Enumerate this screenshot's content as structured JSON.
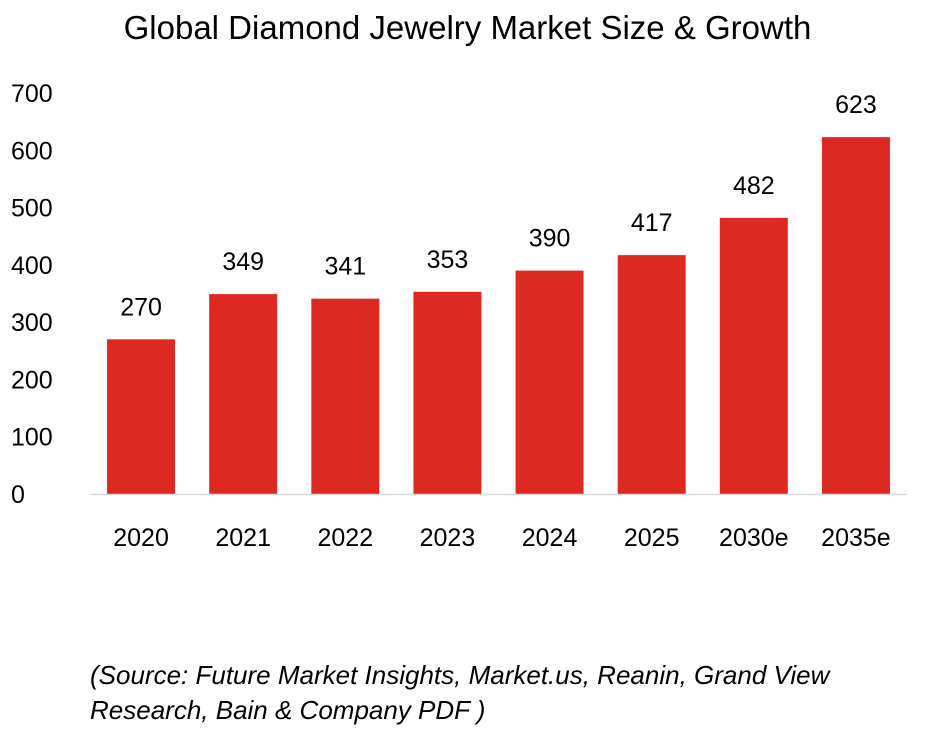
{
  "chart_data": {
    "type": "bar",
    "title": "Global Diamond Jewelry Market Size & Growth",
    "xlabel": "",
    "ylabel": "",
    "categories": [
      "2020",
      "2021",
      "2022",
      "2023",
      "2024",
      "2025",
      "2030e",
      "2035e"
    ],
    "values": [
      270,
      349,
      341,
      353,
      390,
      417,
      482,
      623
    ],
    "ylim": [
      0,
      700
    ],
    "yticks": [
      0,
      100,
      200,
      300,
      400,
      500,
      600,
      700
    ],
    "grid": false,
    "legend": "none",
    "bar_color": "#dc2a22"
  },
  "source_note": "(Source: Future Market Insights, Market.us, Reanin, Grand View Research, Bain & Company PDF )"
}
